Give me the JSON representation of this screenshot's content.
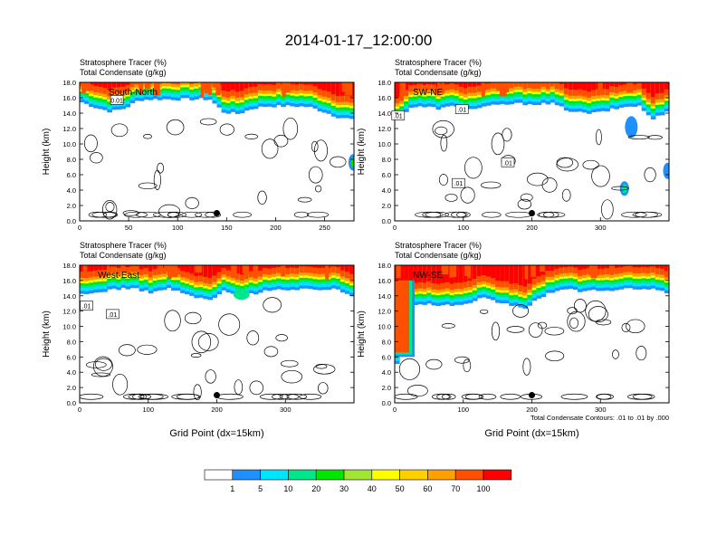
{
  "title": "2014-01-17_12:00:00",
  "colors": {
    "levels": [
      "#ffffff",
      "#1e90ff",
      "#00e5ff",
      "#00e68a",
      "#00e600",
      "#a0e632",
      "#ffff00",
      "#ffd000",
      "#ffa000",
      "#ff5000",
      "#ff0000"
    ],
    "contour": "#000000"
  },
  "chart_data": [
    {
      "type": "heatmap",
      "header_line1": "Stratosphere Tracer   (%)",
      "header_line2": "Total Condensate   (g/kg)",
      "label": "South-North",
      "ylabel": "Height (km)",
      "xlabel": "",
      "xlim": [
        0,
        280
      ],
      "ylim": [
        0,
        18
      ],
      "xticks": [
        "0",
        "50",
        "100",
        "150",
        "200",
        "250"
      ],
      "xtick_values": [
        0,
        50,
        100,
        150,
        200,
        250
      ],
      "yticks": [
        "0.0",
        "2.0",
        "4.0",
        "6.0",
        "8.0",
        "10.0",
        "12.0",
        "14.0",
        "16.0",
        "18.0"
      ],
      "tropopause_km": [
        16.2,
        15.5,
        15.0,
        15.4,
        16.5,
        16.6,
        16.6,
        16.6,
        16.6,
        16.6,
        14.9,
        14.7,
        15.4,
        15.7,
        15.7,
        15.7,
        15.6,
        15.0,
        14.3,
        14.0
      ],
      "dot_x": 140,
      "contour_labels": [
        {
          "text": "0.01",
          "x": 38,
          "y": 15.6
        }
      ]
    },
    {
      "type": "heatmap",
      "header_line1": "Stratosphere Tracer   (%)",
      "header_line2": "Total Condensate   (g/kg)",
      "label": "SW-NE",
      "ylabel": "Height (km)",
      "xlabel": "",
      "xlim": [
        0,
        400
      ],
      "ylim": [
        0,
        18
      ],
      "xticks": [
        "0",
        "100",
        "200",
        "300"
      ],
      "xtick_values": [
        0,
        100,
        200,
        300
      ],
      "yticks": [
        "0.0",
        "2.0",
        "4.0",
        "6.0",
        "8.0",
        "10.0",
        "12.0",
        "14.0",
        "16.0",
        "18.0"
      ],
      "tropopause_km": [
        13.9,
        15.6,
        15.6,
        15.4,
        15.7,
        15.2,
        15.6,
        15.8,
        16.0,
        16.0,
        16.0,
        16.0,
        15.2,
        14.8,
        14.8,
        15.2,
        15.6,
        15.8,
        14.0,
        15.0
      ],
      "dot_x": 200,
      "contour_labels": [
        {
          "text": ".01",
          "x": 98,
          "y": 14.4
        },
        {
          "text": ".01",
          "x": 165,
          "y": 7.5
        },
        {
          "text": ".01",
          "x": 93,
          "y": 4.8
        },
        {
          "text": ".01",
          "x": 5,
          "y": 13.6
        }
      ]
    },
    {
      "type": "heatmap",
      "header_line1": "Stratosphere Tracer   (%)",
      "header_line2": "Total Condensate   (g/kg)",
      "label": "West-East",
      "ylabel": "Height (km)",
      "xlabel": "Grid Point (dx=15km)",
      "xlim": [
        0,
        400
      ],
      "ylim": [
        0,
        18
      ],
      "xticks": [
        "0",
        "100",
        "200",
        "300"
      ],
      "xtick_values": [
        0,
        100,
        200,
        300
      ],
      "yticks": [
        "0.0",
        "2.0",
        "4.0",
        "6.0",
        "8.0",
        "10.0",
        "12.0",
        "14.0",
        "16.0",
        "18.0"
      ],
      "tropopause_km": [
        14.9,
        15.2,
        15.6,
        15.8,
        15.6,
        15.2,
        15.8,
        15.2,
        14.6,
        14.2,
        15.4,
        14.8,
        15.0,
        15.6,
        15.6,
        15.4,
        15.8,
        15.6,
        15.6,
        14.8
      ],
      "dot_x": 200,
      "contour_labels": [
        {
          "text": ".01",
          "x": 10,
          "y": 12.6
        },
        {
          "text": ".01",
          "x": 48,
          "y": 11.5
        }
      ]
    },
    {
      "type": "heatmap",
      "header_line1": "Stratosphere Tracer   (%)",
      "header_line2": "Total Condensate   (g/kg)",
      "label": "NW-SE",
      "ylabel": "Height (km)",
      "xlabel": "Grid Point (dx=15km)",
      "footnote": "Total Condensate Contours: .01 to .01 by .000",
      "xlim": [
        0,
        400
      ],
      "ylim": [
        0,
        18
      ],
      "xticks": [
        "0",
        "100",
        "200",
        "300"
      ],
      "xtick_values": [
        0,
        100,
        200,
        300
      ],
      "yticks": [
        "0.0",
        "2.0",
        "4.0",
        "6.0",
        "8.0",
        "10.0",
        "12.0",
        "14.0",
        "16.0",
        "18.0"
      ],
      "tropopause_km": [
        6.0,
        13.6,
        13.8,
        13.5,
        13.6,
        13.6,
        14.5,
        14.0,
        13.6,
        13.2,
        14.4,
        15.4,
        15.6,
        15.4,
        15.6,
        15.4,
        15.6,
        15.8,
        15.6,
        15.2
      ],
      "dot_x": 200,
      "contour_labels": []
    }
  ],
  "colorbar": {
    "labels": [
      "1",
      "5",
      "10",
      "20",
      "30",
      "40",
      "50",
      "60",
      "70",
      "100"
    ]
  }
}
